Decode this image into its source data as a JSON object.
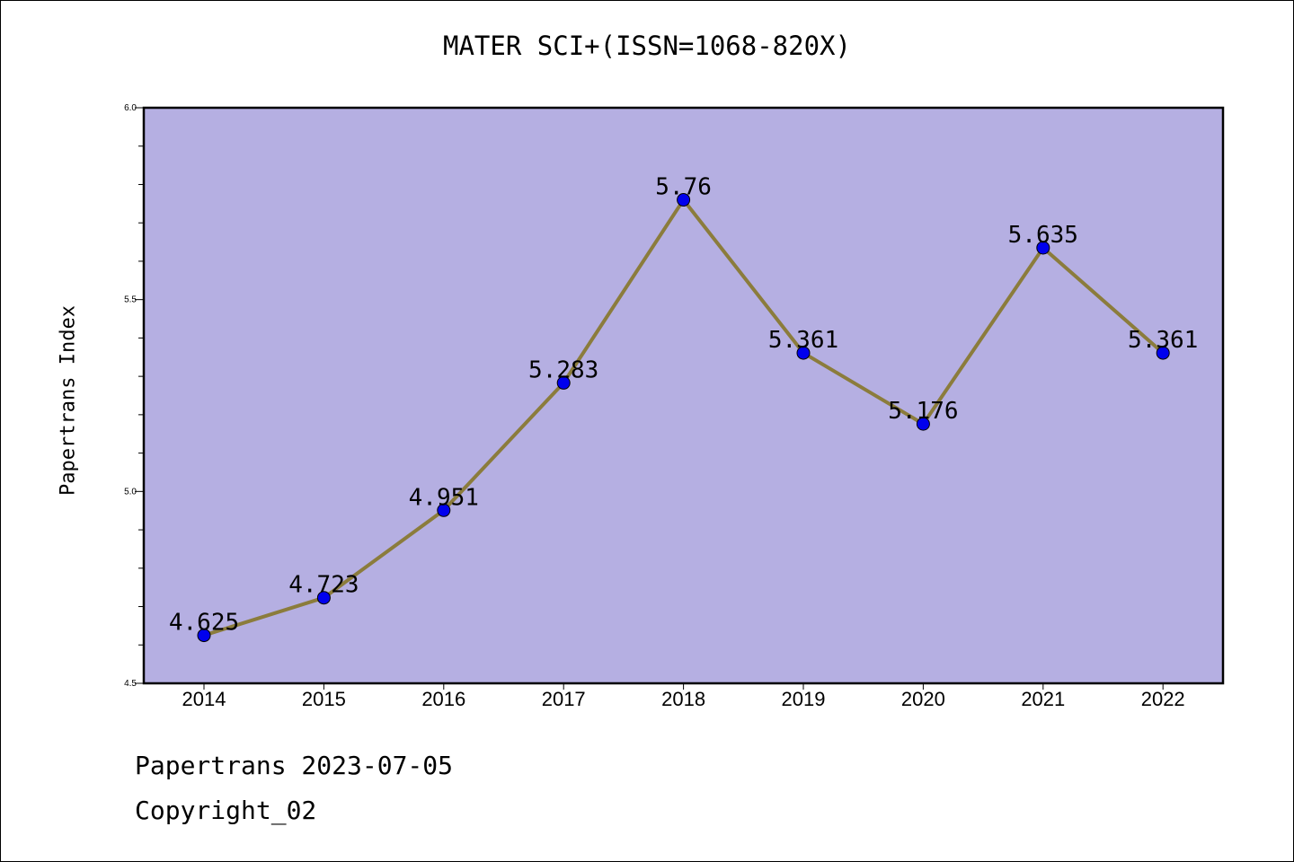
{
  "chart_data": {
    "type": "line",
    "title": "MATER SCI+(ISSN=1068-820X)",
    "ylabel": "Papertrans Index",
    "xlabel": "",
    "categories": [
      "2014",
      "2015",
      "2016",
      "2017",
      "2018",
      "2019",
      "2020",
      "2021",
      "2022"
    ],
    "series": [
      {
        "values": [
          4.625,
          4.723,
          4.951,
          5.283,
          5.76,
          5.361,
          5.176,
          5.635,
          5.361
        ],
        "data_labels": [
          "4.625",
          "4.723",
          "4.951",
          "5.283",
          "5.76",
          "5.361",
          "5.176",
          "5.635",
          "5.361"
        ]
      }
    ],
    "ylim": [
      4.5,
      6.0
    ],
    "yticks": [
      "4.5",
      "5.0",
      "5.5",
      "6.0"
    ],
    "legend": "none",
    "grid": false,
    "colors": {
      "plot_background": "#b5afe2",
      "line": "#8b7c3c",
      "marker": "#0000ee"
    }
  },
  "footer": {
    "line1": "Papertrans 2023-07-05",
    "line2": "Copyright_02"
  }
}
